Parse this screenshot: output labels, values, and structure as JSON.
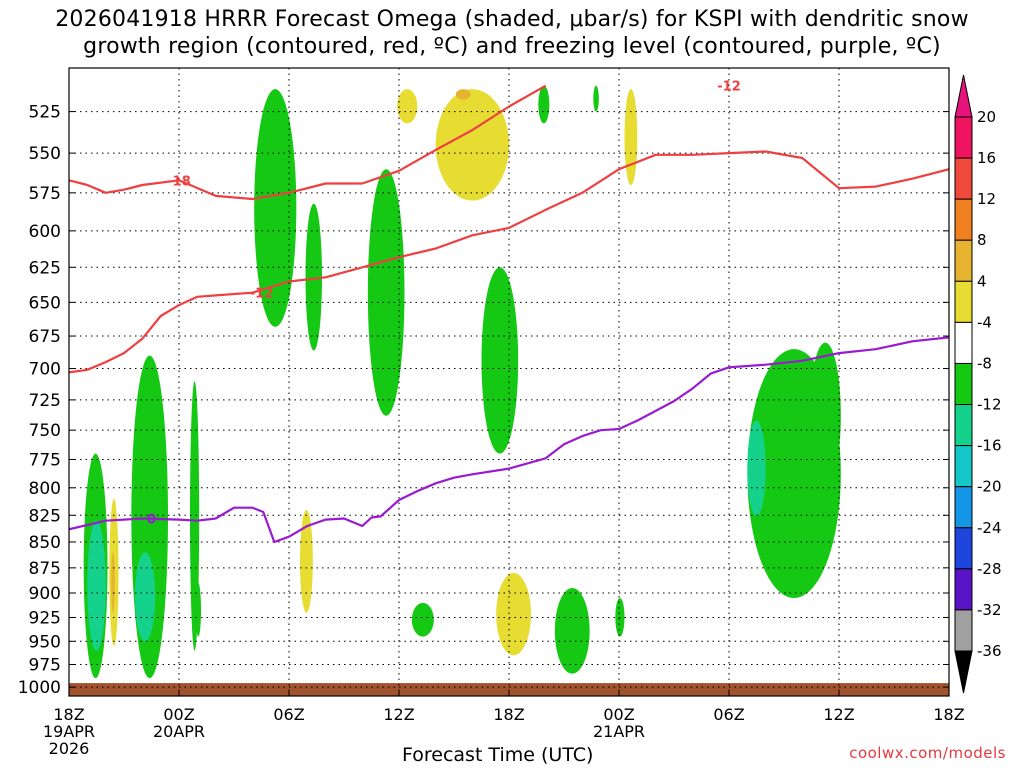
{
  "title": {
    "line1": "2026041918 HRRR Forecast Omega (shaded, μbar/s) for KSPI with dendritic snow",
    "line2": "growth region (contoured, red, ºC) and freezing level (contoured, purple, ºC)"
  },
  "credit": "coolwx.com/models",
  "chart_data": {
    "type": "time-height cross section",
    "xlabel": "Forecast Time (UTC)",
    "ylabel": "",
    "x_range_hours": [
      0,
      48
    ],
    "y_range_hpa": [
      1010,
      500
    ],
    "y_scale": "log-pressure",
    "grid": "dotted",
    "y_ticks": [
      525,
      550,
      575,
      600,
      625,
      650,
      675,
      700,
      725,
      750,
      775,
      800,
      825,
      850,
      875,
      900,
      925,
      950,
      975,
      1000
    ],
    "x_ticks": [
      {
        "hour": 0,
        "label": "18Z",
        "sub": [
          "19APR",
          "2026"
        ]
      },
      {
        "hour": 6,
        "label": "00Z",
        "sub": [
          "20APR"
        ]
      },
      {
        "hour": 12,
        "label": "06Z",
        "sub": []
      },
      {
        "hour": 18,
        "label": "12Z",
        "sub": []
      },
      {
        "hour": 24,
        "label": "18Z",
        "sub": []
      },
      {
        "hour": 30,
        "label": "00Z",
        "sub": [
          "21APR"
        ]
      },
      {
        "hour": 36,
        "label": "06Z",
        "sub": []
      },
      {
        "hour": 42,
        "label": "12Z",
        "sub": []
      },
      {
        "hour": 48,
        "label": "18Z",
        "sub": []
      }
    ],
    "colorbar": {
      "levels": [
        {
          "value": 20,
          "label": "20",
          "color": "#ee1460"
        },
        {
          "value": 16,
          "label": "16",
          "color": "#f04a3c"
        },
        {
          "value": 12,
          "label": "12",
          "color": "#f08020"
        },
        {
          "value": 8,
          "label": "8",
          "color": "#e6b430"
        },
        {
          "value": 4,
          "label": "4",
          "color": "#e6dc32"
        },
        {
          "value": -4,
          "label": "-4",
          "color": "#ffffff"
        },
        {
          "value": -8,
          "label": "-8",
          "color": "#14c814"
        },
        {
          "value": -12,
          "label": "-12",
          "color": "#14d28c"
        },
        {
          "value": -16,
          "label": "-16",
          "color": "#14c8c8"
        },
        {
          "value": -20,
          "label": "-20",
          "color": "#1496e6"
        },
        {
          "value": -24,
          "label": "-24",
          "color": "#1e46dc"
        },
        {
          "value": -28,
          "label": "-28",
          "color": "#5a14c8"
        },
        {
          "value": -32,
          "label": "-32",
          "color": "#9614c8"
        },
        {
          "value": -36,
          "label": "-36",
          "color": "#a0a0a0"
        }
      ],
      "top_color": "#e6147a",
      "bottom_color": "#000000"
    },
    "terrain": {
      "color": "#a0522d",
      "pressure_hpa": 1000
    },
    "contours": [
      {
        "name": "-18",
        "color": "#ee4040",
        "label": "-18",
        "label_at_hour": 6.0,
        "points": [
          [
            0,
            567
          ],
          [
            1,
            570
          ],
          [
            2,
            575
          ],
          [
            3,
            573
          ],
          [
            4,
            570
          ],
          [
            6,
            567
          ],
          [
            8,
            577
          ],
          [
            10,
            579
          ],
          [
            12,
            575
          ],
          [
            14,
            569
          ],
          [
            16,
            569
          ],
          [
            18,
            561
          ],
          [
            20,
            548
          ],
          [
            22,
            536
          ],
          [
            24,
            522
          ]
        ]
      },
      {
        "name": "-12",
        "color": "#ee4040",
        "label": "-12",
        "label_at_hour": 36.0,
        "points": [
          [
            24,
            522
          ],
          [
            26,
            510
          ]
        ]
      },
      {
        "name": "-12",
        "color": "#ee4040",
        "label": "-12",
        "label_at_hour": 10.5,
        "points": [
          [
            0,
            703
          ],
          [
            1,
            701
          ],
          [
            2,
            695
          ],
          [
            3,
            688
          ],
          [
            4,
            677
          ],
          [
            5,
            660
          ],
          [
            6,
            652
          ],
          [
            7,
            646
          ],
          [
            8,
            645
          ],
          [
            10,
            643
          ],
          [
            12,
            635
          ],
          [
            14,
            632
          ],
          [
            16,
            625
          ],
          [
            18,
            618
          ],
          [
            20,
            612
          ],
          [
            22,
            603
          ],
          [
            24,
            598
          ],
          [
            26,
            586
          ],
          [
            28,
            575
          ],
          [
            30,
            560
          ],
          [
            32,
            551
          ],
          [
            34,
            551
          ],
          [
            36,
            550
          ],
          [
            38,
            549
          ],
          [
            40,
            553
          ],
          [
            42,
            572
          ],
          [
            44,
            571
          ],
          [
            46,
            566
          ],
          [
            48,
            560
          ]
        ]
      },
      {
        "name": "0",
        "color": "#9a1ad2",
        "label": "0",
        "label_at_hour": 4.5,
        "points": [
          [
            0,
            838
          ],
          [
            2,
            830
          ],
          [
            4,
            828
          ],
          [
            6,
            829
          ],
          [
            7,
            830
          ],
          [
            8,
            828
          ],
          [
            9,
            818
          ],
          [
            10,
            818
          ],
          [
            10.6,
            822
          ],
          [
            11.2,
            850
          ],
          [
            12,
            845
          ],
          [
            13,
            835
          ],
          [
            14,
            829
          ],
          [
            15,
            828
          ],
          [
            16,
            835
          ],
          [
            16.5,
            827
          ],
          [
            17,
            826
          ],
          [
            18,
            811
          ],
          [
            19,
            803
          ],
          [
            20,
            796
          ],
          [
            21,
            791
          ],
          [
            22,
            788
          ],
          [
            24,
            783
          ],
          [
            26,
            774
          ],
          [
            27,
            762
          ],
          [
            28,
            755
          ],
          [
            29,
            750
          ],
          [
            30,
            749
          ],
          [
            31,
            742
          ],
          [
            32,
            734
          ],
          [
            33,
            726
          ],
          [
            34,
            716
          ],
          [
            35,
            704
          ],
          [
            36,
            699
          ],
          [
            38,
            697
          ],
          [
            40,
            694
          ],
          [
            42,
            688
          ],
          [
            44,
            685
          ],
          [
            46,
            679
          ],
          [
            48,
            676
          ]
        ]
      }
    ],
    "omega_regions": [
      {
        "band": "-8..-4",
        "hours": [
          0.8,
          2.1
        ],
        "hpa": [
          770,
          990
        ]
      },
      {
        "band": "-12..-8",
        "hours": [
          1.0,
          2.0
        ],
        "hpa": [
          830,
          960
        ]
      },
      {
        "band": "4..8",
        "hours": [
          2.2,
          2.7
        ],
        "hpa": [
          810,
          955
        ]
      },
      {
        "band": "8..12",
        "hours": [
          2.3,
          2.5
        ],
        "hpa": [
          860,
          920
        ]
      },
      {
        "band": "-8..-4",
        "hours": [
          3.4,
          5.4
        ],
        "hpa": [
          690,
          990
        ]
      },
      {
        "band": "-12..-8",
        "hours": [
          3.6,
          4.7
        ],
        "hpa": [
          860,
          950
        ]
      },
      {
        "band": "-8..-4",
        "hours": [
          6.6,
          7.1
        ],
        "hpa": [
          710,
          960
        ]
      },
      {
        "band": "-8..-4",
        "hours": [
          6.9,
          7.2
        ],
        "hpa": [
          890,
          945
        ]
      },
      {
        "band": "-8..-4",
        "hours": [
          10.1,
          12.4
        ],
        "hpa": [
          512,
          668
        ]
      },
      {
        "band": "-8..-4",
        "hours": [
          12.9,
          13.8
        ],
        "hpa": [
          582,
          686
        ]
      },
      {
        "band": "4..8",
        "hours": [
          12.6,
          13.3
        ],
        "hpa": [
          820,
          920
        ]
      },
      {
        "band": "-8..-4",
        "hours": [
          16.3,
          18.3
        ],
        "hpa": [
          560,
          738
        ]
      },
      {
        "band": "4..8",
        "hours": [
          17.9,
          19.0
        ],
        "hpa": [
          512,
          532
        ]
      },
      {
        "band": "-8..-4",
        "hours": [
          18.7,
          19.9
        ],
        "hpa": [
          910,
          945
        ]
      },
      {
        "band": "4..8",
        "hours": [
          20.0,
          24.0
        ],
        "hpa": [
          512,
          580
        ]
      },
      {
        "band": "8..12",
        "hours": [
          21.1,
          21.9
        ],
        "hpa": [
          512,
          518
        ]
      },
      {
        "band": "-8..-4",
        "hours": [
          22.5,
          24.5
        ],
        "hpa": [
          625,
          770
        ]
      },
      {
        "band": "4..8",
        "hours": [
          23.3,
          25.2
        ],
        "hpa": [
          880,
          965
        ]
      },
      {
        "band": "-8..-4",
        "hours": [
          25.6,
          26.2
        ],
        "hpa": [
          510,
          532
        ]
      },
      {
        "band": "-8..-4",
        "hours": [
          26.5,
          28.4
        ],
        "hpa": [
          895,
          985
        ]
      },
      {
        "band": "-8..-4",
        "hours": [
          28.6,
          28.9
        ],
        "hpa": [
          510,
          525
        ]
      },
      {
        "band": "-8..-4",
        "hours": [
          29.8,
          30.3
        ],
        "hpa": [
          905,
          945
        ]
      },
      {
        "band": "4..8",
        "hours": [
          30.3,
          31.0
        ],
        "hpa": [
          512,
          570
        ]
      },
      {
        "band": "-8..-4",
        "hours": [
          37.0,
          42.1
        ],
        "hpa": [
          685,
          905
        ]
      },
      {
        "band": "-12..-8",
        "hours": [
          37.0,
          38.0
        ],
        "hpa": [
          742,
          826
        ]
      },
      {
        "band": "-8..-4",
        "hours": [
          40.4,
          42.1
        ],
        "hpa": [
          680,
          800
        ]
      }
    ]
  }
}
